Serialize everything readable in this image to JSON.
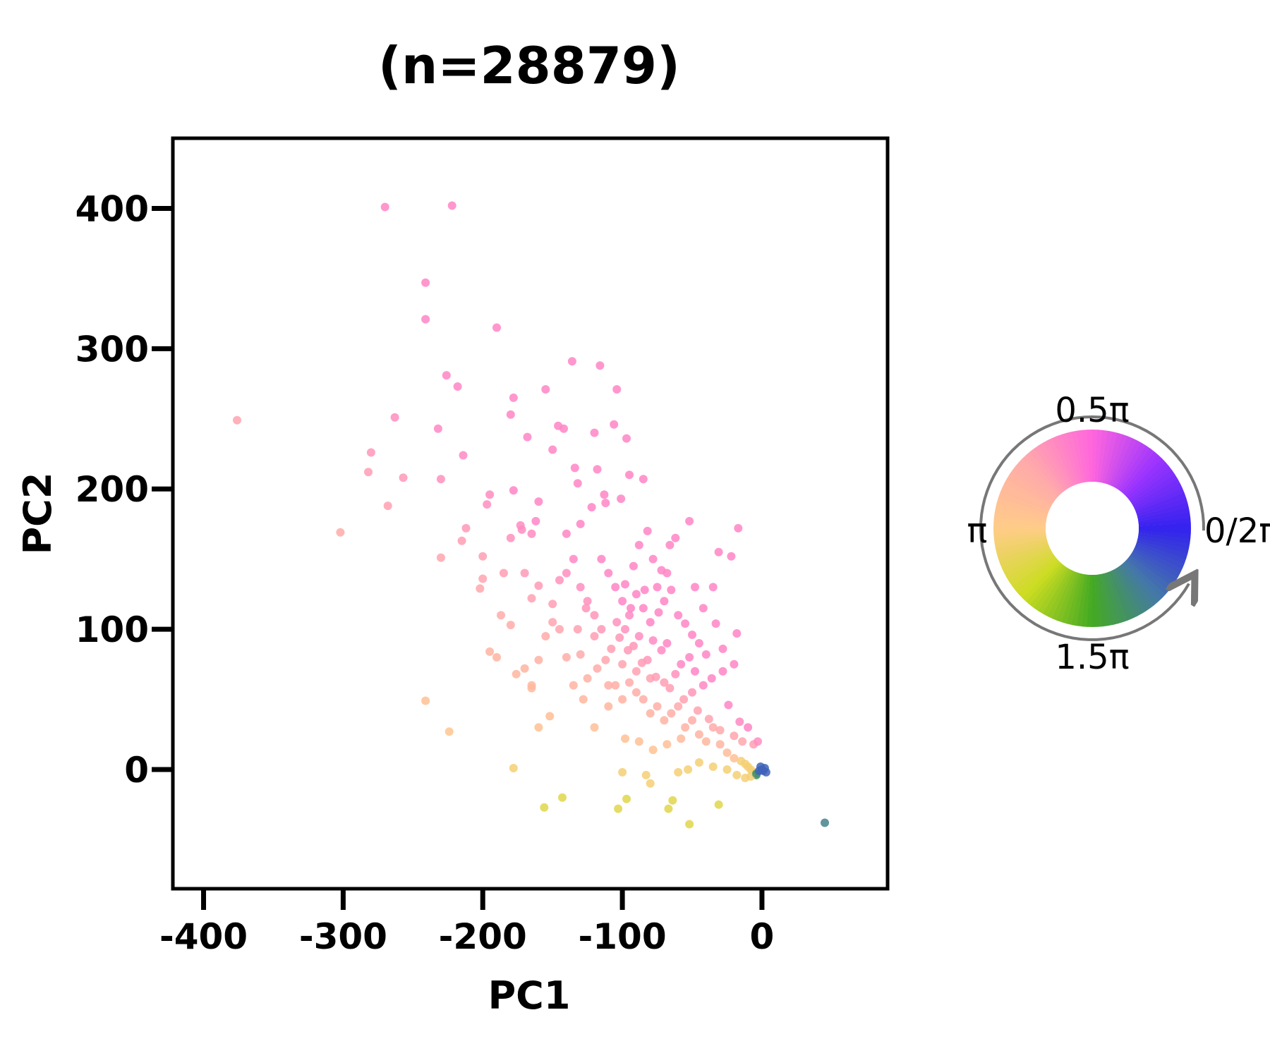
{
  "chart_data": {
    "type": "scatter",
    "title": "(n=28879)",
    "xlabel": "PC1",
    "ylabel": "PC2",
    "xlim": [
      -422,
      90
    ],
    "ylim": [
      -85,
      450
    ],
    "xticks": [
      {
        "value": -400,
        "label": "-400"
      },
      {
        "value": -300,
        "label": "-300"
      },
      {
        "value": -200,
        "label": "-200"
      },
      {
        "value": -100,
        "label": "-100"
      },
      {
        "value": 0,
        "label": "0"
      }
    ],
    "yticks": [
      {
        "value": 0,
        "label": "0"
      },
      {
        "value": 100,
        "label": "100"
      },
      {
        "value": 200,
        "label": "200"
      },
      {
        "value": 300,
        "label": "300"
      },
      {
        "value": 400,
        "label": "400"
      }
    ],
    "grid": false,
    "legend": {
      "kind": "phase-color-wheel",
      "placement": "right",
      "labels": {
        "top": "0.5π",
        "right": "0/2π",
        "left": "π",
        "bottom": "1.5π"
      },
      "colors": [
        "#3322ee",
        "#9933ff",
        "#ff66dd",
        "#ffaaaa",
        "#ffcc88",
        "#ccdd22",
        "#44aa22",
        "#4477aa"
      ]
    },
    "points": [
      [
        -270,
        401
      ],
      [
        -222,
        402
      ],
      [
        -241,
        347
      ],
      [
        -241,
        321
      ],
      [
        -190,
        315
      ],
      [
        -376,
        249
      ],
      [
        -280,
        226
      ],
      [
        -282,
        212
      ],
      [
        -263,
        251
      ],
      [
        -257,
        208
      ],
      [
        -268,
        188
      ],
      [
        -302,
        169
      ],
      [
        -226,
        281
      ],
      [
        -218,
        273
      ],
      [
        -232,
        243
      ],
      [
        -230,
        207
      ],
      [
        -214,
        224
      ],
      [
        -212,
        172
      ],
      [
        -215,
        163
      ],
      [
        -195,
        196
      ],
      [
        -197,
        189
      ],
      [
        -178,
        265
      ],
      [
        -180,
        253
      ],
      [
        -178,
        199
      ],
      [
        -172,
        171
      ],
      [
        -168,
        237
      ],
      [
        -155,
        271
      ],
      [
        -146,
        245
      ],
      [
        -142,
        243
      ],
      [
        -136,
        291
      ],
      [
        -116,
        288
      ],
      [
        -104,
        271
      ],
      [
        -106,
        246
      ],
      [
        -97,
        236
      ],
      [
        -120,
        240
      ],
      [
        -150,
        228
      ],
      [
        -134,
        215
      ],
      [
        -132,
        204
      ],
      [
        -118,
        214
      ],
      [
        -113,
        196
      ],
      [
        -112,
        190
      ],
      [
        -95,
        210
      ],
      [
        -101,
        193
      ],
      [
        -85,
        207
      ],
      [
        -122,
        187
      ],
      [
        -130,
        175
      ],
      [
        -140,
        168
      ],
      [
        -160,
        191
      ],
      [
        -162,
        177
      ],
      [
        -165,
        168
      ],
      [
        -173,
        174
      ],
      [
        -180,
        165
      ],
      [
        -200,
        152
      ],
      [
        -200,
        136
      ],
      [
        -202,
        129
      ],
      [
        -230,
        151
      ],
      [
        -187,
        110
      ],
      [
        -185,
        140
      ],
      [
        -180,
        103
      ],
      [
        -170,
        140
      ],
      [
        -165,
        122
      ],
      [
        -160,
        131
      ],
      [
        -150,
        118
      ],
      [
        -145,
        135
      ],
      [
        -140,
        140
      ],
      [
        -135,
        150
      ],
      [
        -130,
        130
      ],
      [
        -125,
        120
      ],
      [
        -120,
        110
      ],
      [
        -115,
        150
      ],
      [
        -110,
        140
      ],
      [
        -105,
        130
      ],
      [
        -100,
        120
      ],
      [
        -95,
        110
      ],
      [
        -90,
        125
      ],
      [
        -85,
        115
      ],
      [
        -80,
        105
      ],
      [
        -75,
        130
      ],
      [
        -70,
        120
      ],
      [
        -65,
        128
      ],
      [
        -60,
        110
      ],
      [
        -55,
        104
      ],
      [
        -50,
        96
      ],
      [
        -45,
        90
      ],
      [
        -40,
        82
      ],
      [
        -35,
        130
      ],
      [
        -33,
        104
      ],
      [
        -31,
        155
      ],
      [
        -28,
        86
      ],
      [
        -24,
        46
      ],
      [
        -22,
        152
      ],
      [
        -17,
        172
      ],
      [
        -18,
        97
      ],
      [
        -20,
        75
      ],
      [
        -28,
        70
      ],
      [
        -36,
        65
      ],
      [
        -42,
        60
      ],
      [
        -48,
        70
      ],
      [
        -52,
        80
      ],
      [
        -58,
        75
      ],
      [
        -62,
        68
      ],
      [
        -68,
        90
      ],
      [
        -72,
        85
      ],
      [
        -78,
        92
      ],
      [
        -82,
        78
      ],
      [
        -88,
        95
      ],
      [
        -92,
        88
      ],
      [
        -98,
        100
      ],
      [
        -102,
        94
      ],
      [
        -108,
        86
      ],
      [
        -112,
        78
      ],
      [
        -118,
        72
      ],
      [
        -125,
        65
      ],
      [
        -130,
        82
      ],
      [
        -135,
        60
      ],
      [
        -140,
        80
      ],
      [
        -145,
        100
      ],
      [
        -150,
        105
      ],
      [
        -155,
        95
      ],
      [
        -160,
        78
      ],
      [
        -165,
        60
      ],
      [
        -170,
        72
      ],
      [
        -176,
        68
      ],
      [
        -195,
        84
      ],
      [
        -190,
        80
      ],
      [
        -152,
        38
      ],
      [
        -160,
        30
      ],
      [
        -165,
        58
      ],
      [
        -128,
        50
      ],
      [
        -120,
        30
      ],
      [
        -110,
        45
      ],
      [
        -105,
        60
      ],
      [
        -100,
        75
      ],
      [
        -95,
        62
      ],
      [
        -90,
        55
      ],
      [
        -85,
        50
      ],
      [
        -80,
        40
      ],
      [
        -75,
        45
      ],
      [
        -70,
        35
      ],
      [
        -65,
        40
      ],
      [
        -60,
        45
      ],
      [
        -55,
        30
      ],
      [
        -50,
        35
      ],
      [
        -45,
        25
      ],
      [
        -40,
        20
      ],
      [
        -35,
        30
      ],
      [
        -30,
        18
      ],
      [
        -25,
        12
      ],
      [
        -20,
        8
      ],
      [
        -15,
        6
      ],
      [
        -12,
        4
      ],
      [
        -10,
        2
      ],
      [
        -8,
        0
      ],
      [
        -6,
        -2
      ],
      [
        -4,
        -4
      ],
      [
        -14,
        20
      ],
      [
        -10,
        30
      ],
      [
        -6,
        18
      ],
      [
        -3,
        20
      ],
      [
        -50,
        55
      ],
      [
        -70,
        62
      ],
      [
        -80,
        65
      ],
      [
        -90,
        70
      ],
      [
        -100,
        50
      ],
      [
        -110,
        60
      ],
      [
        -115,
        100
      ],
      [
        -120,
        95
      ],
      [
        -126,
        115
      ],
      [
        -132,
        100
      ],
      [
        -98,
        132
      ],
      [
        -92,
        145
      ],
      [
        -88,
        160
      ],
      [
        -82,
        170
      ],
      [
        -78,
        150
      ],
      [
        -72,
        142
      ],
      [
        -66,
        160
      ],
      [
        -62,
        165
      ],
      [
        -52,
        177
      ],
      [
        -48,
        130
      ],
      [
        -42,
        115
      ],
      [
        -68,
        140
      ],
      [
        -74,
        112
      ],
      [
        -84,
        128
      ],
      [
        -94,
        115
      ],
      [
        -104,
        105
      ],
      [
        -96,
        85
      ],
      [
        -86,
        76
      ],
      [
        -76,
        66
      ],
      [
        -66,
        58
      ],
      [
        -56,
        50
      ],
      [
        -46,
        42
      ],
      [
        -38,
        36
      ],
      [
        -30,
        28
      ],
      [
        -20,
        24
      ],
      [
        -16,
        34
      ],
      [
        -58,
        22
      ],
      [
        -68,
        18
      ],
      [
        -78,
        14
      ],
      [
        -88,
        20
      ],
      [
        -98,
        22
      ],
      [
        -83,
        -4
      ],
      [
        -80,
        -10
      ],
      [
        -100,
        -2
      ],
      [
        -103,
        -28
      ],
      [
        -97,
        -21
      ],
      [
        -64,
        -22
      ],
      [
        -67,
        -28
      ],
      [
        -52,
        -39
      ],
      [
        -31,
        -25
      ],
      [
        -143,
        -20
      ],
      [
        -156,
        -27
      ],
      [
        -178,
        1
      ],
      [
        -224,
        27
      ],
      [
        -241,
        49
      ],
      [
        -60,
        -2
      ],
      [
        -53,
        0
      ],
      [
        -45,
        5
      ],
      [
        -35,
        2
      ],
      [
        -25,
        0
      ],
      [
        -18,
        -4
      ],
      [
        -12,
        -6
      ],
      [
        -8,
        -5
      ],
      [
        -4,
        -3
      ],
      [
        -2,
        -1
      ],
      [
        0,
        0
      ],
      [
        1,
        -1
      ],
      [
        2,
        1
      ],
      [
        -1,
        2
      ],
      [
        3,
        -2
      ],
      [
        45,
        -38
      ]
    ]
  }
}
